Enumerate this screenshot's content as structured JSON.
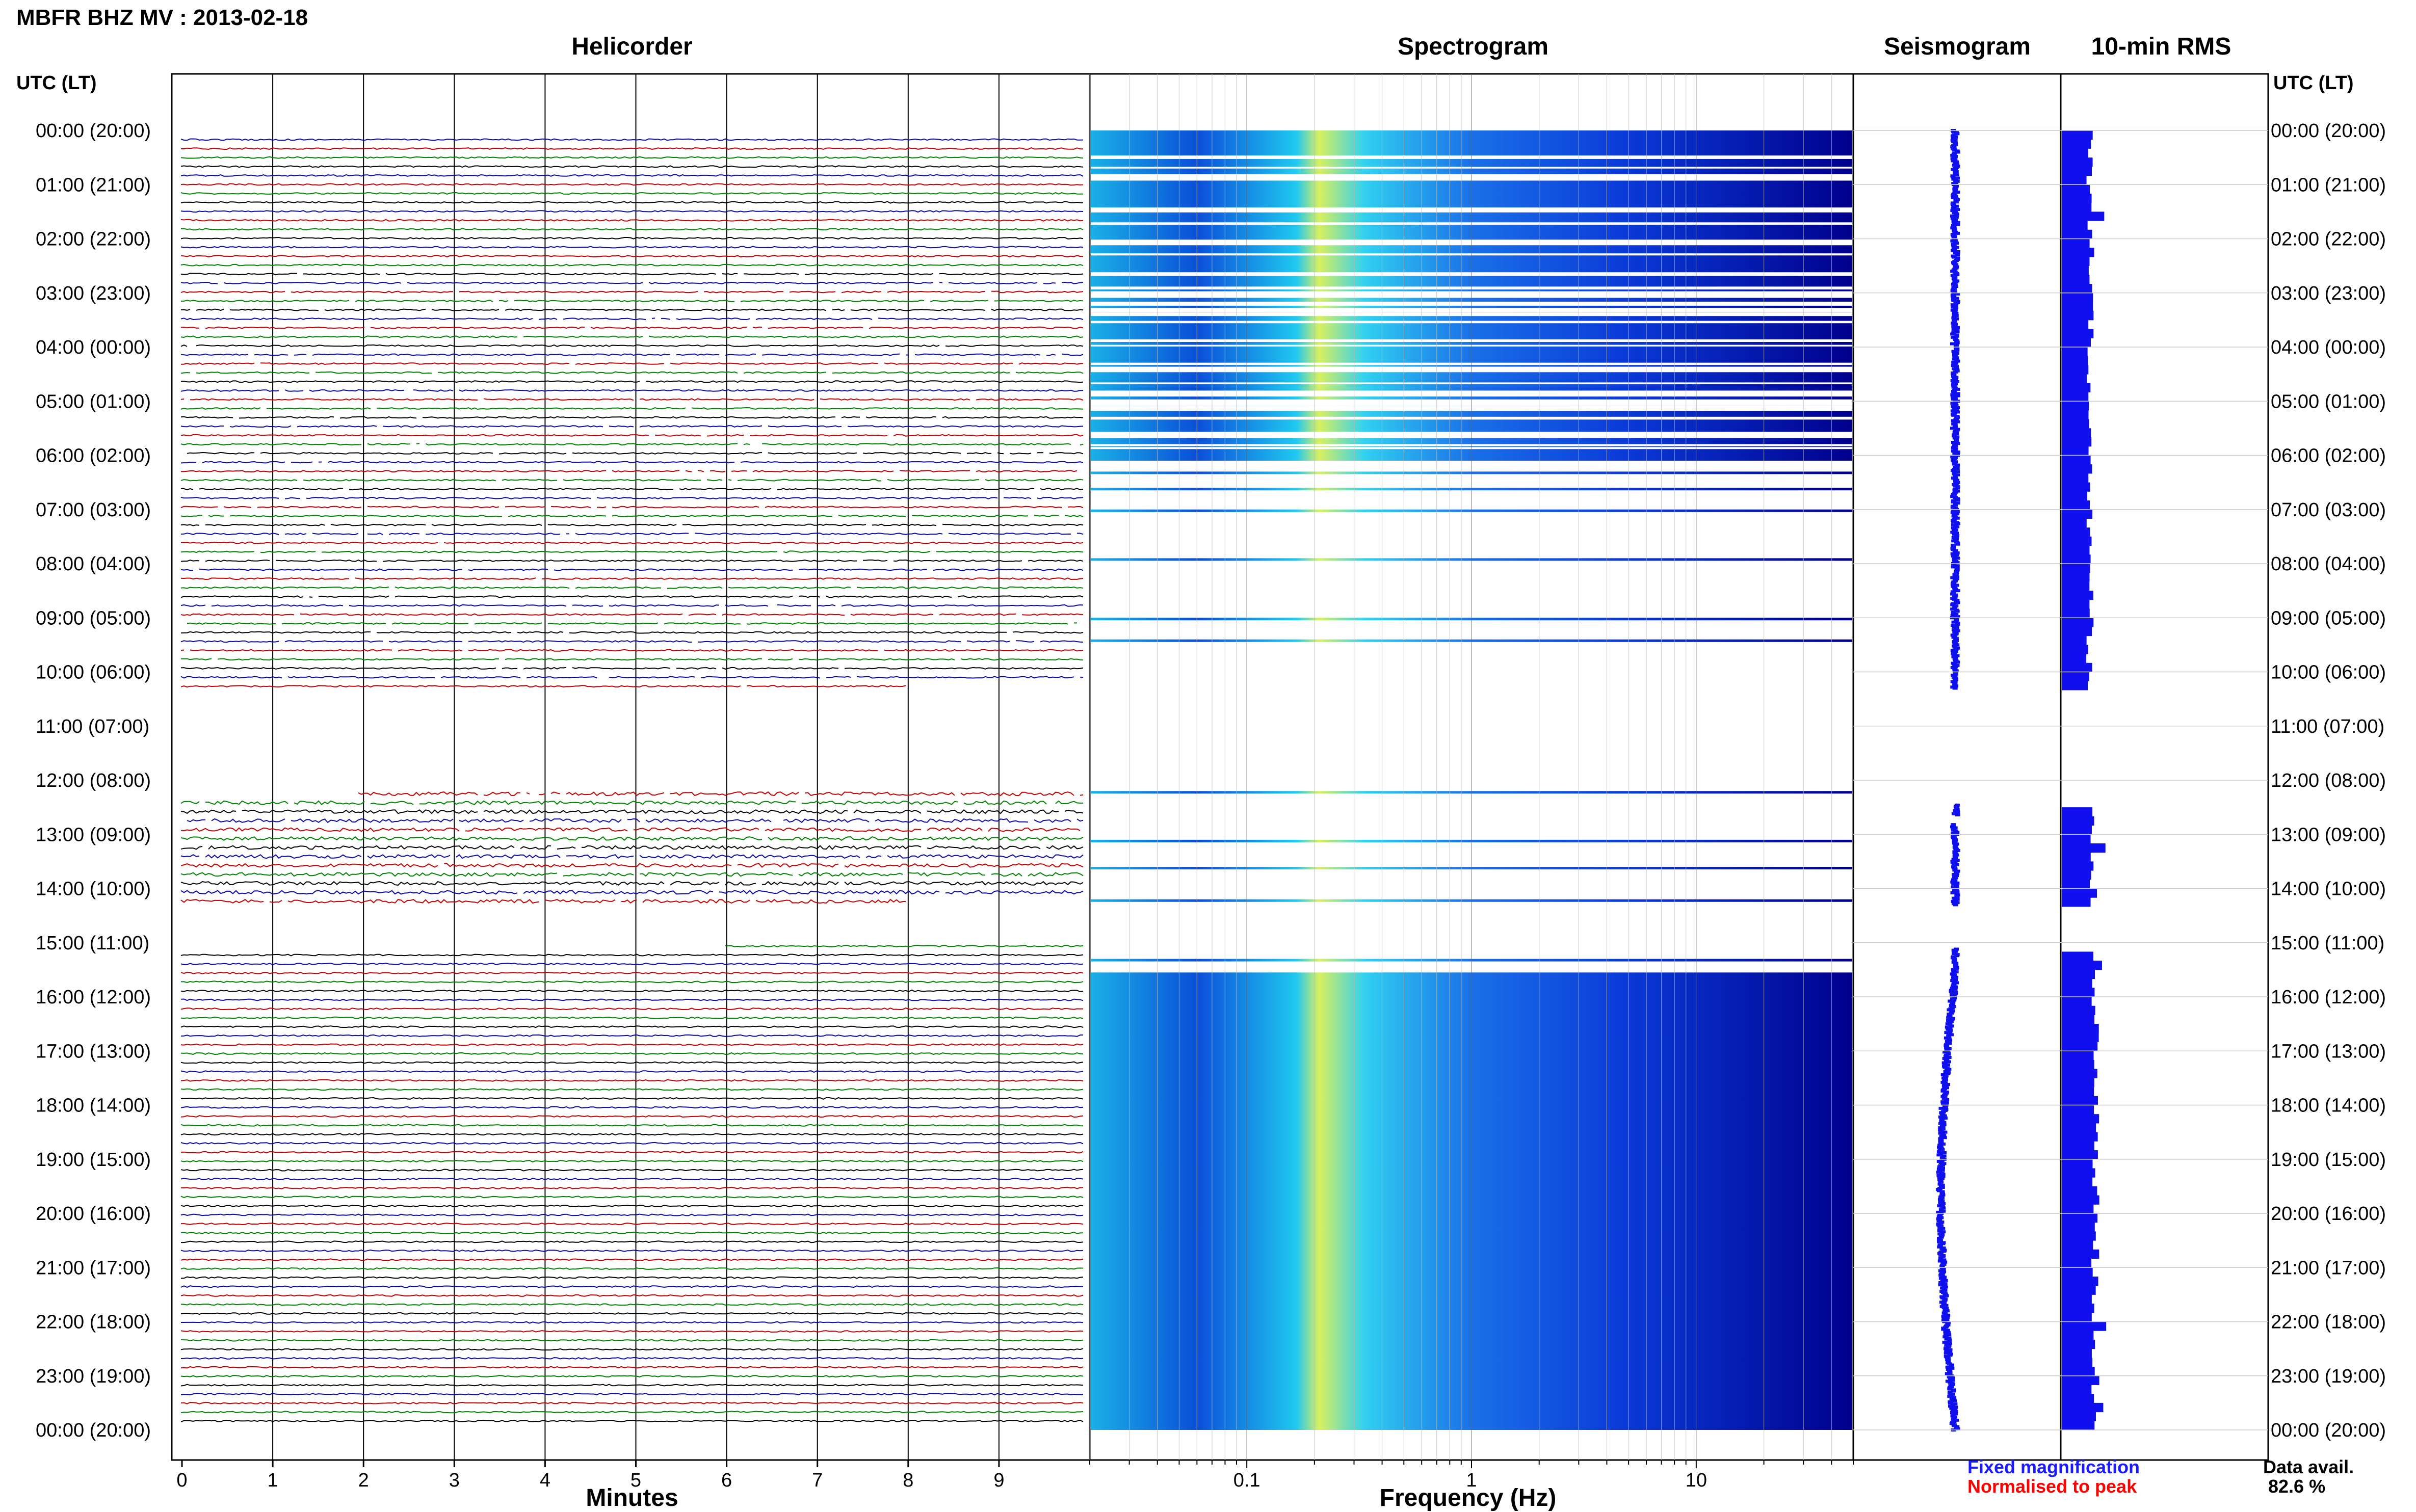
{
  "title": "MBFR BHZ MV : 2013-02-18",
  "panels": {
    "helicorder": "Helicorder",
    "spectrogram": "Spectrogram",
    "seismogram": "Seismogram",
    "rms": "10-min RMS"
  },
  "utc_header": "UTC (LT)",
  "time_labels": [
    "00:00 (20:00)",
    "01:00 (21:00)",
    "02:00 (22:00)",
    "03:00 (23:00)",
    "04:00 (00:00)",
    "05:00 (01:00)",
    "06:00 (02:00)",
    "07:00 (03:00)",
    "08:00 (04:00)",
    "09:00 (05:00)",
    "10:00 (06:00)",
    "11:00 (07:00)",
    "12:00 (08:00)",
    "13:00 (09:00)",
    "14:00 (10:00)",
    "15:00 (11:00)",
    "16:00 (12:00)",
    "17:00 (13:00)",
    "18:00 (14:00)",
    "19:00 (15:00)",
    "20:00 (16:00)",
    "21:00 (17:00)",
    "22:00 (18:00)",
    "23:00 (19:00)",
    "00:00 (20:00)"
  ],
  "xlabel_minutes": "Minutes",
  "xlabel_freq": "Frequency (Hz)",
  "minute_ticks": [
    "0",
    "1",
    "2",
    "3",
    "4",
    "5",
    "6",
    "7",
    "8",
    "9"
  ],
  "freq_ticks": [
    "0.1",
    "1",
    "10"
  ],
  "legend": {
    "fixed": "Fixed magnification",
    "normalised": "Normalised to peak",
    "fixed_color": "#1a1aff",
    "normalised_color": "#ff0000"
  },
  "data_avail_label": "Data avail.",
  "data_avail_value": "82.6 %",
  "colors": {
    "trace_cycle": [
      "#0a0aa0",
      "#c00000",
      "#008000",
      "#000000"
    ],
    "spectrogram_low": "#00008c",
    "spectrogram_high": "#ffff40",
    "rms_bar": "#1010ee"
  },
  "chart_data": {
    "type": "heatmap",
    "station": "MBFR BHZ MV",
    "date": "2013-02-18",
    "freq_axis": {
      "scale": "log",
      "range_hz": [
        0.02,
        50
      ]
    },
    "minutes_axis": {
      "range": [
        0,
        10
      ]
    },
    "data_gaps_utc": [
      [
        10.3,
        12.2
      ],
      [
        14.3,
        15.1
      ]
    ],
    "data_availability_pct": 82.6
  }
}
